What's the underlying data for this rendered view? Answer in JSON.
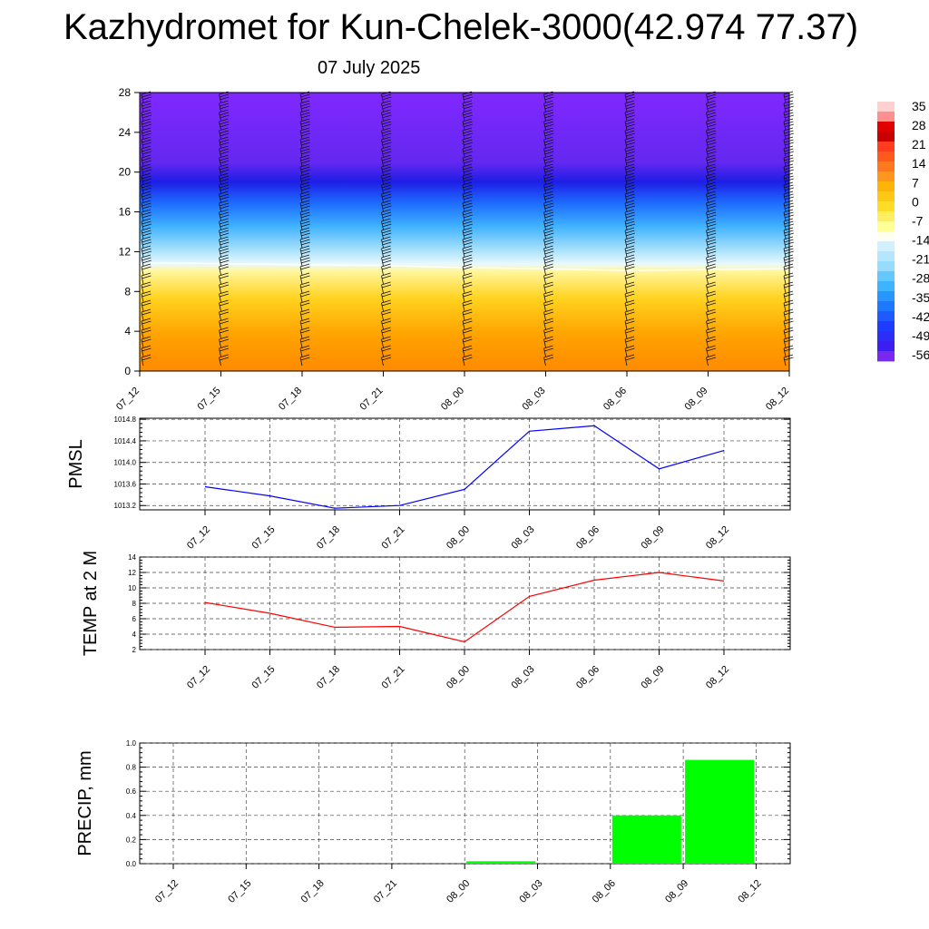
{
  "title": "Kazhydromet for Kun-Chelek-3000(42.974 77.37)",
  "subtitle": "07 July 2025",
  "colorbar": {
    "labels": [
      "35",
      "28",
      "21",
      "14",
      "7",
      "0",
      "-7",
      "-14",
      "-21",
      "-28",
      "-35",
      "-42",
      "-49",
      "-56"
    ],
    "colors": [
      "#c80000",
      "#ff3c1e",
      "#ff781e",
      "#ffb40a",
      "#ffdc28",
      "#ffff96",
      "#d2f0ff",
      "#96dcff",
      "#3cb4ff",
      "#1e78ff",
      "#1e3cff",
      "#3c1ef0",
      "#7828f0"
    ]
  },
  "chart_data": [
    {
      "type": "heatmap",
      "name": "temperature-wind-cross-section",
      "x": [
        "07_12",
        "07_15",
        "07_18",
        "07_21",
        "08_00",
        "08_03",
        "08_06",
        "08_09",
        "08_12"
      ],
      "y_ticks": [
        0,
        4,
        8,
        12,
        16,
        20,
        24,
        28
      ],
      "ylim": [
        0,
        28
      ],
      "freezing_level": [
        10.9,
        10.8,
        10.7,
        10.6,
        10.4,
        10.3,
        10.1,
        10.2,
        10.3
      ],
      "value_range": [
        -56,
        35
      ],
      "wind_barbs": true
    },
    {
      "type": "line",
      "ylabel": "PMSL",
      "x": [
        "07_12",
        "07_15",
        "07_18",
        "07_21",
        "08_00",
        "08_03",
        "08_06",
        "08_09",
        "08_12"
      ],
      "y": [
        1013.55,
        1013.38,
        1013.15,
        1013.2,
        1013.5,
        1014.58,
        1014.68,
        1013.88,
        1014.22
      ],
      "y_ticks": [
        "1013.2",
        "1013.6",
        "1014.0",
        "1014.4",
        "1014.8"
      ],
      "ylim": [
        1013.12,
        1014.82
      ],
      "color": "#0000ff",
      "grid": true
    },
    {
      "type": "line",
      "ylabel": "TEMP at 2 M",
      "x": [
        "07_12",
        "07_15",
        "07_18",
        "07_21",
        "08_00",
        "08_03",
        "08_06",
        "08_09",
        "08_12"
      ],
      "y": [
        8.1,
        6.7,
        4.9,
        5.0,
        3.0,
        8.9,
        11.0,
        12.0,
        10.9
      ],
      "y_ticks": [
        "2",
        "4",
        "6",
        "8",
        "10",
        "12",
        "14"
      ],
      "ylim": [
        2,
        14
      ],
      "color": "#ff0000",
      "grid": true
    },
    {
      "type": "bar",
      "ylabel": "PRECIP, mm",
      "categories": [
        "07_12",
        "07_15",
        "07_18",
        "07_21",
        "08_00",
        "08_03",
        "08_06",
        "08_09",
        "08_12"
      ],
      "values": [
        0.0,
        0.0,
        0.0,
        0.0,
        0.02,
        0.0,
        0.4,
        0.86,
        0.0
      ],
      "y_ticks": [
        "0.0",
        "0.2",
        "0.4",
        "0.6",
        "0.8",
        "1.0"
      ],
      "ylim": [
        0,
        1.0
      ],
      "color": "#00ff00",
      "grid": true
    }
  ]
}
